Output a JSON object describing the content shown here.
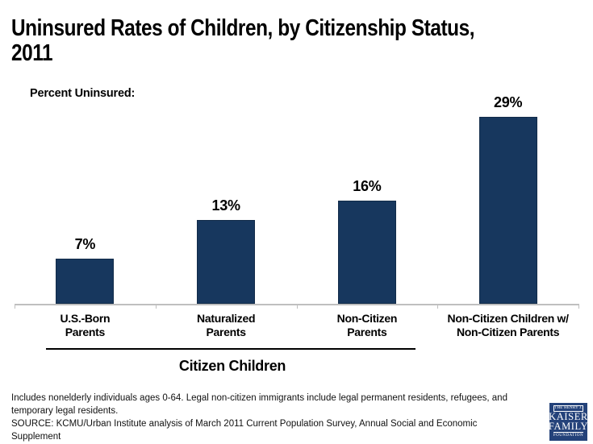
{
  "page": {
    "title": "Uninsured Rates of Children, by Citizenship Status,\n2011",
    "axis_note": "Percent Uninsured:"
  },
  "chart_data": {
    "type": "bar",
    "title": "Uninsured Rates of Children, by Citizenship Status, 2011",
    "ylabel": "Percent Uninsured",
    "categories": [
      "U.S.-Born\nParents",
      "Naturalized\nParents",
      "Non-Citizen\nParents",
      "Non-Citizen Children w/\nNon-Citizen Parents"
    ],
    "values": [
      7,
      13,
      16,
      29
    ],
    "value_labels": [
      "7%",
      "13%",
      "16%",
      "29%"
    ],
    "group_label": "Citizen Children",
    "group_label_span_categories": [
      0,
      1,
      2
    ],
    "bar_color": "#17375E",
    "axis_color": "#BFBFBF",
    "ylim": [
      0,
      30
    ],
    "grid": false,
    "legend": "none"
  },
  "footer": {
    "note": "Includes nonelderly individuals ages 0-64. Legal non-citizen immigrants include legal permanent residents, refugees, and\ntemporary legal residents.",
    "source": "SOURCE: KCMU/Urban Institute analysis of March 2011 Current Population Survey, Annual Social and Economic\nSupplement"
  },
  "logo": {
    "line1": "THE HENRY J.",
    "line2": "KAISER",
    "line3": "FAMILY",
    "line4": "FOUNDATION"
  }
}
